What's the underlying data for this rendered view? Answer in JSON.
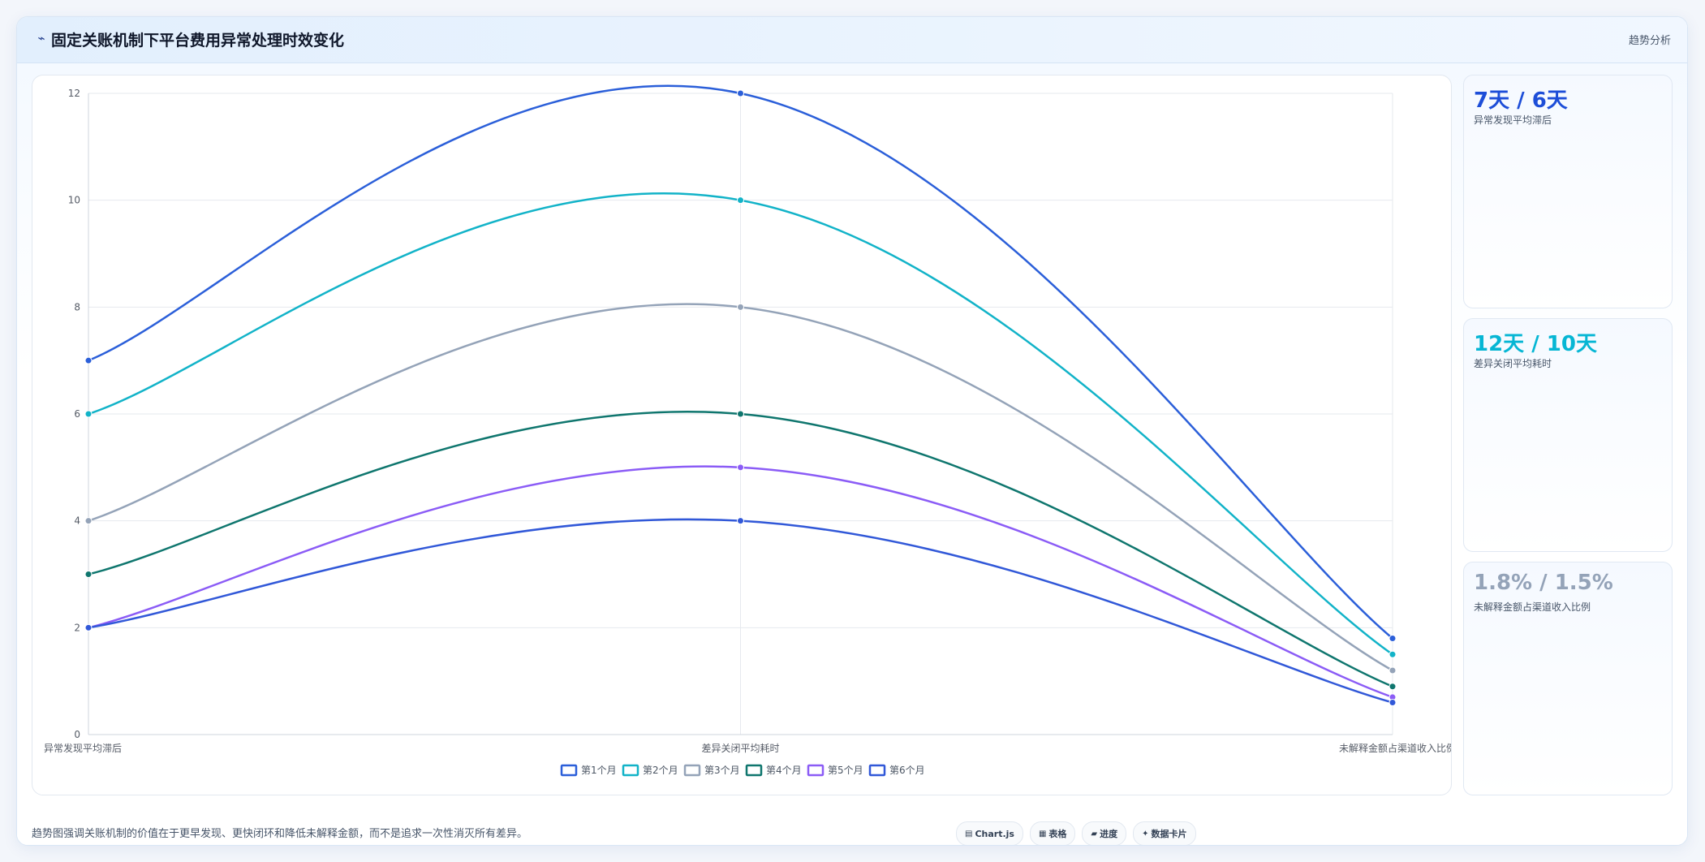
{
  "header": {
    "icon": "trend-icon",
    "title": "固定关账机制下平台费用异常处理时效变化",
    "right_label": "趋势分析"
  },
  "stats": [
    {
      "value": "7天 / 6天",
      "label": "异常发现平均滞后",
      "color": "#1d4ed8"
    },
    {
      "value": "12天 / 10天",
      "label": "差异关闭平均耗时",
      "color": "#06b6d4"
    },
    {
      "value": "1.8% / 1.5%",
      "label": "未解释金额占渠道收入比例",
      "color": "#94a3b8"
    }
  ],
  "footer": {
    "note": "趋势图强调关账机制的价值在于更早发现、更快闭环和降低未解释金额，而不是追求一次性消灭所有差异。",
    "tools": [
      {
        "icon": "chart-icon",
        "label": "Chart.js"
      },
      {
        "icon": "table-icon",
        "label": "表格"
      },
      {
        "icon": "progress-icon",
        "label": "进度"
      },
      {
        "icon": "card-icon",
        "label": "数据卡片"
      }
    ]
  },
  "chart_data": {
    "type": "line",
    "categories": [
      "异常发现平均滞后",
      "差异关闭平均耗时",
      "未解释金额占渠道收入比例"
    ],
    "ylim": [
      0,
      12
    ],
    "yticks": [
      0,
      2,
      4,
      6,
      8,
      10,
      12
    ],
    "grid": true,
    "legend_position": "bottom",
    "series": [
      {
        "name": "第1个月",
        "values": [
          7,
          12,
          1.8
        ],
        "color": "#2b5fd9"
      },
      {
        "name": "第2个月",
        "values": [
          6,
          10,
          1.5
        ],
        "color": "#12b3c8"
      },
      {
        "name": "第3个月",
        "values": [
          4,
          8,
          1.2
        ],
        "color": "#94a3b8"
      },
      {
        "name": "第4个月",
        "values": [
          3,
          6,
          0.9
        ],
        "color": "#0f766e"
      },
      {
        "name": "第5个月",
        "values": [
          2,
          5,
          0.7
        ],
        "color": "#8b5cf6"
      },
      {
        "name": "第6个月",
        "values": [
          2,
          4,
          0.6
        ],
        "color": "#3158d8"
      }
    ]
  }
}
